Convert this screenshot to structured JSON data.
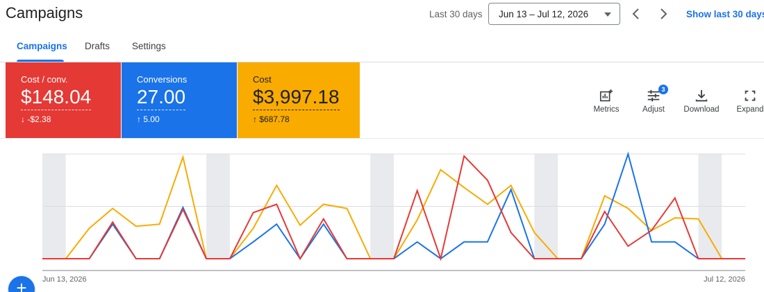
{
  "header": {
    "title": "Campaigns",
    "range_label": "Last 30 days",
    "date_range": "Jun 13 – Jul 12, 2026",
    "show_link": "Show last 30 days"
  },
  "tabs": [
    {
      "label": "Campaigns",
      "active": true
    },
    {
      "label": "Drafts",
      "active": false
    },
    {
      "label": "Settings",
      "active": false
    }
  ],
  "metric_cards": [
    {
      "label": "Cost / conv.",
      "value": "$148.04",
      "delta": "-$2.38",
      "direction": "down",
      "color": "#e53935"
    },
    {
      "label": "Conversions",
      "value": "27.00",
      "delta": "5.00",
      "direction": "up",
      "color": "#1a73e8"
    },
    {
      "label": "Cost",
      "value": "$3,997.18",
      "delta": "$687.78",
      "direction": "up",
      "color": "#f9ab00"
    }
  ],
  "toolbar": {
    "metrics_label": "Metrics",
    "adjust_label": "Adjust",
    "adjust_badge": "3",
    "download_label": "Download",
    "expand_label": "Expand"
  },
  "fab_label": "+",
  "chart_data": {
    "type": "line",
    "x_start_label": "Jun 13, 2026",
    "x_end_label": "Jul 12, 2026",
    "grid": true,
    "ylim": [
      0,
      1
    ],
    "weekend_bands": [
      [
        0,
        1
      ],
      [
        7,
        8
      ],
      [
        14,
        15
      ],
      [
        21,
        22
      ],
      [
        28,
        29
      ]
    ],
    "series": [
      {
        "color": "#f9ab00",
        "values": [
          0,
          0,
          0.29,
          0.48,
          0.31,
          0.33,
          0.97,
          0,
          0,
          0.29,
          0.7,
          0.32,
          0.52,
          0.48,
          0,
          0,
          0.37,
          0.85,
          0.68,
          0.52,
          0.7,
          0.25,
          0,
          0,
          0.6,
          0.48,
          0.27,
          0.39,
          0.38,
          0,
          0
        ]
      },
      {
        "color": "#1a73e8",
        "values": [
          0,
          0,
          0,
          0.33,
          0,
          0,
          0.49,
          0,
          0,
          0.16,
          0.33,
          0,
          0.33,
          0,
          0,
          0,
          0.16,
          0,
          0.16,
          0.16,
          0.66,
          0,
          0,
          0,
          0.33,
          1.0,
          0.16,
          0.16,
          0,
          0,
          0
        ]
      },
      {
        "color": "#e53935",
        "values": [
          0,
          0,
          0,
          0.35,
          0,
          0,
          0.47,
          0,
          0,
          0.44,
          0.52,
          0,
          0.38,
          0,
          0,
          0,
          0.65,
          0,
          0.98,
          0.75,
          0.25,
          0,
          0,
          0,
          0.45,
          0.12,
          0.27,
          0.58,
          0,
          0,
          0
        ]
      }
    ]
  }
}
